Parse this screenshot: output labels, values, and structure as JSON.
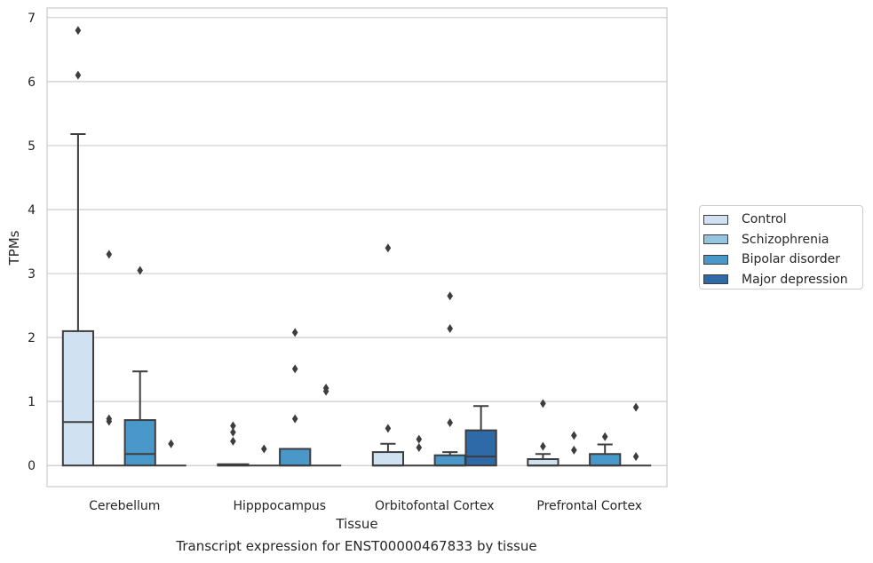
{
  "chart_data": {
    "type": "box",
    "title": "Transcript expression for ENST00000467833 by tissue",
    "xlabel": "Tissue",
    "ylabel": "TPMs",
    "ylim": [
      -0.33,
      7.15
    ],
    "yticks": [
      "0",
      "1",
      "2",
      "3",
      "4",
      "5",
      "6",
      "7"
    ],
    "categories": [
      "Cerebellum",
      "Hipppocampus",
      "Orbitofontal Cortex",
      "Prefrontal Cortex"
    ],
    "grid": true,
    "legend_position": "right",
    "series": [
      {
        "name": "Control",
        "color": "#d0e1f2",
        "boxes": [
          {
            "q1": 0,
            "median": 0.68,
            "q3": 2.1,
            "whisker_low": 0,
            "whisker_high": 5.18,
            "outliers": [
              6.1,
              6.8
            ]
          },
          {
            "q1": 0,
            "median": 0.0,
            "q3": 0.02,
            "whisker_low": 0,
            "whisker_high": 0.02,
            "outliers": [
              0.38,
              0.52,
              0.62
            ]
          },
          {
            "q1": 0,
            "median": 0.0,
            "q3": 0.21,
            "whisker_low": 0,
            "whisker_high": 0.34,
            "outliers": [
              0.58,
              3.4
            ]
          },
          {
            "q1": 0,
            "median": 0.0,
            "q3": 0.1,
            "whisker_low": 0,
            "whisker_high": 0.18,
            "outliers": [
              0.3,
              0.97
            ]
          }
        ]
      },
      {
        "name": "Schizophrenia",
        "color": "#94c4df",
        "boxes": [
          {
            "q1": 0,
            "median": 0,
            "q3": 0,
            "whisker_low": 0,
            "whisker_high": 0,
            "outliers": [
              0.69,
              0.73,
              3.3
            ]
          },
          {
            "q1": 0,
            "median": 0,
            "q3": 0,
            "whisker_low": 0,
            "whisker_high": 0,
            "outliers": [
              0.26
            ]
          },
          {
            "q1": 0,
            "median": 0,
            "q3": 0,
            "whisker_low": 0,
            "whisker_high": 0,
            "outliers": [
              0.28,
              0.41
            ]
          },
          {
            "q1": 0,
            "median": 0,
            "q3": 0,
            "whisker_low": 0,
            "whisker_high": 0,
            "outliers": [
              0.24,
              0.47
            ]
          }
        ]
      },
      {
        "name": "Bipolar disorder",
        "color": "#4a98c9",
        "boxes": [
          {
            "q1": 0,
            "median": 0.18,
            "q3": 0.71,
            "whisker_low": 0,
            "whisker_high": 1.47,
            "outliers": [
              3.05
            ]
          },
          {
            "q1": 0,
            "median": 0.0,
            "q3": 0.26,
            "whisker_low": 0,
            "whisker_high": 0.26,
            "outliers": [
              0.73,
              1.51,
              2.08
            ]
          },
          {
            "q1": 0,
            "median": 0.0,
            "q3": 0.16,
            "whisker_low": 0,
            "whisker_high": 0.21,
            "outliers": [
              0.67,
              2.14,
              2.65
            ]
          },
          {
            "q1": 0,
            "median": 0.0,
            "q3": 0.18,
            "whisker_low": 0,
            "whisker_high": 0.33,
            "outliers": [
              0.45
            ]
          }
        ]
      },
      {
        "name": "Major depression",
        "color": "#2e69a8",
        "boxes": [
          {
            "q1": 0,
            "median": 0,
            "q3": 0,
            "whisker_low": 0,
            "whisker_high": 0,
            "outliers": [
              0.34
            ]
          },
          {
            "q1": 0,
            "median": 0,
            "q3": 0,
            "whisker_low": 0,
            "whisker_high": 0,
            "outliers": [
              1.16,
              1.21
            ]
          },
          {
            "q1": 0,
            "median": 0.14,
            "q3": 0.55,
            "whisker_low": 0,
            "whisker_high": 0.93,
            "outliers": []
          },
          {
            "q1": 0,
            "median": 0,
            "q3": 0,
            "whisker_low": 0,
            "whisker_high": 0,
            "outliers": [
              0.14,
              0.91
            ]
          }
        ]
      }
    ]
  }
}
